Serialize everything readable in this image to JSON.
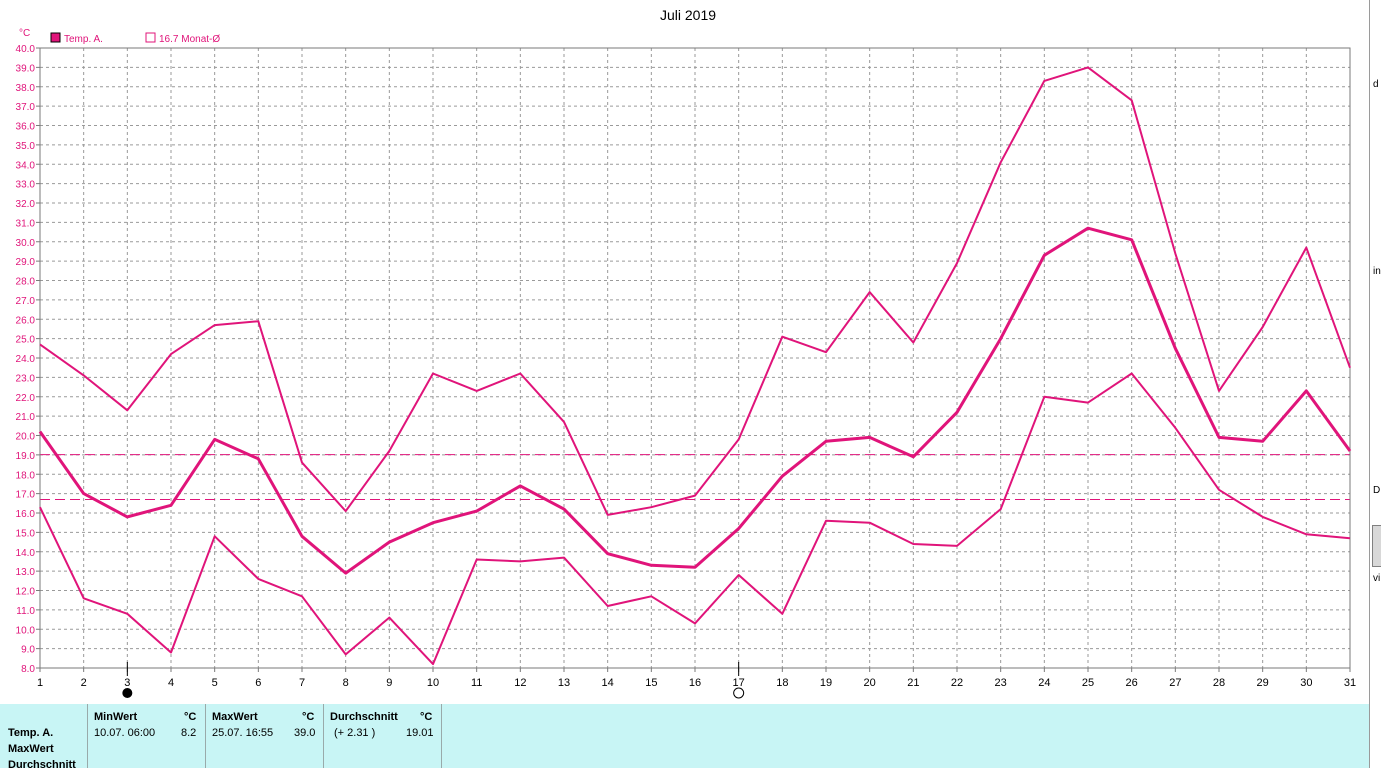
{
  "chart_data": {
    "type": "line",
    "title": "Juli 2019",
    "ylabel": "°C",
    "ylim": [
      8.0,
      40.0
    ],
    "ytick_step": 1.0,
    "x": [
      1,
      2,
      3,
      4,
      5,
      6,
      7,
      8,
      9,
      10,
      11,
      12,
      13,
      14,
      15,
      16,
      17,
      18,
      19,
      20,
      21,
      22,
      23,
      24,
      25,
      26,
      27,
      28,
      29,
      30,
      31
    ],
    "grid": true,
    "legend": [
      {
        "label": "Temp. A.",
        "marker": "filled-square"
      },
      {
        "label": "16.7 Monat-Ø",
        "marker": "empty-square"
      }
    ],
    "series_color": "#e0147a",
    "series": [
      {
        "name": "Temp. A.",
        "role": "mean",
        "values": [
          20.2,
          17.0,
          15.8,
          16.4,
          19.8,
          18.8,
          14.8,
          12.9,
          14.5,
          15.5,
          16.1,
          17.4,
          16.2,
          13.9,
          13.3,
          13.2,
          15.2,
          17.9,
          19.7,
          19.9,
          18.9,
          21.2,
          25.0,
          29.3,
          30.7,
          30.1,
          24.5,
          19.9,
          19.7,
          22.3,
          19.2
        ]
      },
      {
        "role": "max",
        "values": [
          24.7,
          23.1,
          21.3,
          24.2,
          25.7,
          25.9,
          18.6,
          16.1,
          19.2,
          23.2,
          22.3,
          23.2,
          20.7,
          15.9,
          16.3,
          16.9,
          19.8,
          25.1,
          24.3,
          27.4,
          24.8,
          28.9,
          34.1,
          38.3,
          39.0,
          37.3,
          29.4,
          22.3,
          25.6,
          29.7,
          23.5
        ]
      },
      {
        "role": "min",
        "values": [
          16.3,
          11.6,
          10.8,
          8.8,
          14.8,
          12.6,
          11.7,
          8.7,
          10.6,
          8.2,
          13.6,
          13.5,
          13.7,
          11.2,
          11.7,
          10.3,
          12.8,
          10.8,
          15.6,
          15.5,
          14.4,
          14.3,
          16.2,
          22.0,
          21.7,
          23.2,
          20.4,
          17.2,
          15.8,
          14.9,
          14.7
        ]
      }
    ],
    "reference_lines": [
      {
        "value": 19.01
      },
      {
        "value": 16.7
      }
    ],
    "moon_phases": [
      {
        "day": 3,
        "phase": "new-moon"
      },
      {
        "day": 17,
        "phase": "full-moon"
      }
    ]
  },
  "right_strip": [
    "d",
    "in",
    "D",
    "vi"
  ],
  "stats": {
    "row_labels": [
      "Temp. A.",
      "MaxWert",
      "Durchschnitt"
    ],
    "min": {
      "header": "MinWert",
      "unit": "°C",
      "datetime": "10.07.  06:00",
      "value": "8.2"
    },
    "max": {
      "header": "MaxWert",
      "unit": "°C",
      "datetime": "25.07.  16:55",
      "value": "39.0"
    },
    "avg": {
      "header": "Durchschnitt",
      "unit": "°C",
      "delta": "(+ 2.31 )",
      "value": "19.01"
    }
  }
}
